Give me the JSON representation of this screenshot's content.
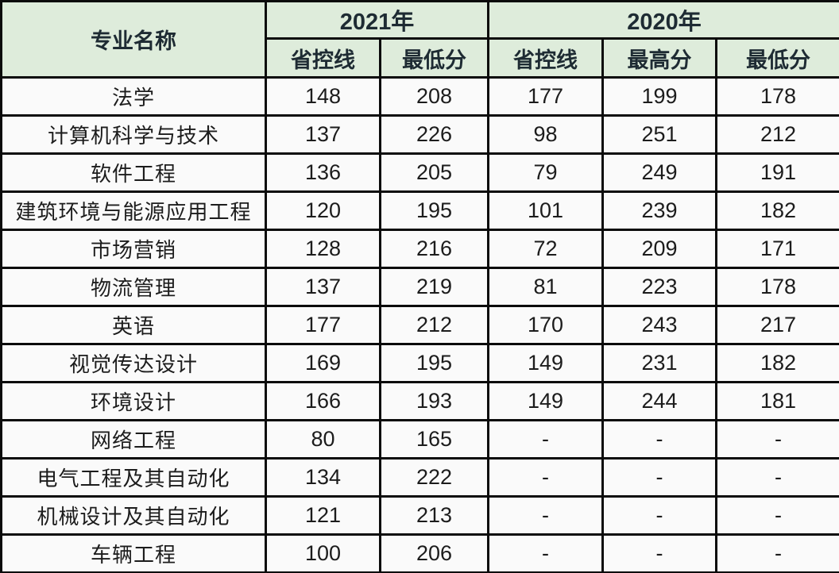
{
  "chart_data": {
    "type": "table",
    "header": {
      "major_column": "专业名称",
      "year_groups": [
        {
          "label": "2021年",
          "subcolumns": [
            "省控线",
            "最低分"
          ]
        },
        {
          "label": "2020年",
          "subcolumns": [
            "省控线",
            "最高分",
            "最低分"
          ]
        }
      ]
    },
    "rows": [
      {
        "major": "法学",
        "values": [
          "148",
          "208",
          "177",
          "199",
          "178"
        ]
      },
      {
        "major": "计算机科学与技术",
        "values": [
          "137",
          "226",
          "98",
          "251",
          "212"
        ]
      },
      {
        "major": "软件工程",
        "values": [
          "136",
          "205",
          "79",
          "249",
          "191"
        ]
      },
      {
        "major": "建筑环境与能源应用工程",
        "values": [
          "120",
          "195",
          "101",
          "239",
          "182"
        ]
      },
      {
        "major": "市场营销",
        "values": [
          "128",
          "216",
          "72",
          "209",
          "171"
        ]
      },
      {
        "major": "物流管理",
        "values": [
          "137",
          "219",
          "81",
          "223",
          "178"
        ]
      },
      {
        "major": "英语",
        "values": [
          "177",
          "212",
          "170",
          "243",
          "217"
        ]
      },
      {
        "major": "视觉传达设计",
        "values": [
          "169",
          "195",
          "149",
          "231",
          "182"
        ]
      },
      {
        "major": "环境设计",
        "values": [
          "166",
          "193",
          "149",
          "244",
          "181"
        ]
      },
      {
        "major": "网络工程",
        "values": [
          "80",
          "165",
          "-",
          "-",
          "-"
        ]
      },
      {
        "major": "电气工程及其自动化",
        "values": [
          "134",
          "222",
          "-",
          "-",
          "-"
        ]
      },
      {
        "major": "机械设计及其自动化",
        "values": [
          "121",
          "213",
          "-",
          "-",
          "-"
        ]
      },
      {
        "major": "车辆工程",
        "values": [
          "100",
          "206",
          "-",
          "-",
          "-"
        ]
      }
    ],
    "missing_value_marker": "-"
  },
  "colors": {
    "header_background": "#deecdb",
    "cell_background": "#fafafa",
    "border": "#0b0b0b",
    "header_text": "#1e2b33",
    "body_text": "#1c1c1c"
  }
}
